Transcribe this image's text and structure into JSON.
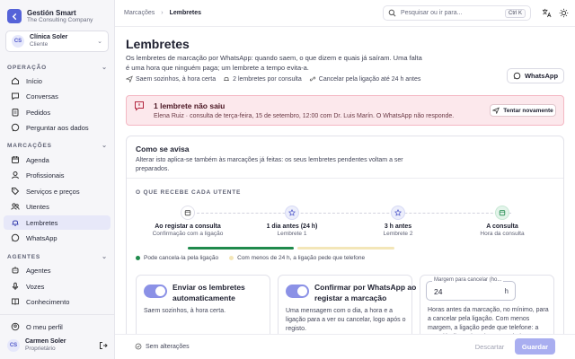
{
  "brand": {
    "name": "Gestión Smart",
    "sub": "The Consulting Company"
  },
  "org": {
    "initials": "CS",
    "name": "Clínica Soler",
    "role": "Cliente"
  },
  "sections": {
    "operacao": "OPERAÇÃO",
    "marcacoes": "MARCAÇÕES",
    "agentes": "AGENTES"
  },
  "nav": {
    "inicio": "Início",
    "conversas": "Conversas",
    "pedidos": "Pedidos",
    "perguntar": "Perguntar aos dados",
    "agenda": "Agenda",
    "profissionais": "Profissionais",
    "servicos": "Serviços e preços",
    "utentes": "Utentes",
    "lembretes": "Lembretes",
    "whatsapp": "WhatsApp",
    "agentes": "Agentes",
    "vozes": "Vozes",
    "conhecimento": "Conhecimento"
  },
  "user": {
    "profile": "O meu perfil",
    "initials": "CS",
    "name": "Carmen Soler",
    "role": "Proprietário"
  },
  "breadcrumb": {
    "parent": "Marcações",
    "current": "Lembretes"
  },
  "search": {
    "placeholder": "Pesquisar ou ir para...",
    "shortcut": "Ctrl K"
  },
  "page": {
    "title": "Lembretes",
    "description": "Os lembretes de marcação por WhatsApp: quando saem, o que dizem e quais já saíram. Uma falta é uma hora que ninguém paga; um lembrete a tempo evita-a.",
    "meta": [
      "Saem sozinhos, à hora certa",
      "2 lembretes por consulta",
      "Cancelar pela ligação até 24 h antes"
    ],
    "whatsapp_button": "WhatsApp"
  },
  "alert": {
    "title": "1 lembrete não saiu",
    "text": "Elena Ruiz · consulta de terça-feira, 15 de setembro, 12:00 com Dr. Luis Marín. O WhatsApp não responde.",
    "retry": "Tentar novamente"
  },
  "card": {
    "title": "Como se avisa",
    "description": "Alterar isto aplica-se também às marcações já feitas: os seus lembretes pendentes voltam a ser preparados.",
    "receives": "O QUE RECEBE CADA UTENTE",
    "steps": [
      {
        "label": "Ao registar a consulta",
        "sub": "Confirmação com a ligação"
      },
      {
        "label": "1 dia antes (24 h)",
        "sub": "Lembrete 1"
      },
      {
        "label": "3 h antes",
        "sub": "Lembrete 2"
      },
      {
        "label": "A consulta",
        "sub": "Hora da consulta"
      }
    ],
    "legend": {
      "can_cancel": "Pode cancela-la pela ligação",
      "less_24": "Com menos de 24 h, a ligação pede que telefone"
    },
    "options": [
      {
        "title": "Enviar os lembretes automaticamente",
        "desc": "Saem sozinhos, à hora certa.",
        "enabled": true
      },
      {
        "title": "Confirmar por WhatsApp ao registar a marcação",
        "desc": "Uma mensagem com o dia, a hora e a ligação para a ver ou cancelar, logo após o registo.",
        "enabled": true
      }
    ],
    "cancel_field": {
      "label": "Margem para cancelar (ho...",
      "value": "24",
      "unit": "h",
      "desc": "Horas antes da marcação, no mínimo, para a cancelar pela ligação. Com menos margem, a ligação pede que telefone: a vaga já não pode voltar a ser dada."
    }
  },
  "footer": {
    "status": "Sem alterações",
    "discard": "Descartar",
    "save": "Guardar"
  },
  "colors": {
    "accent": "#5563d8",
    "alert_bg": "#fce8ec",
    "green": "#1f8a4c"
  }
}
